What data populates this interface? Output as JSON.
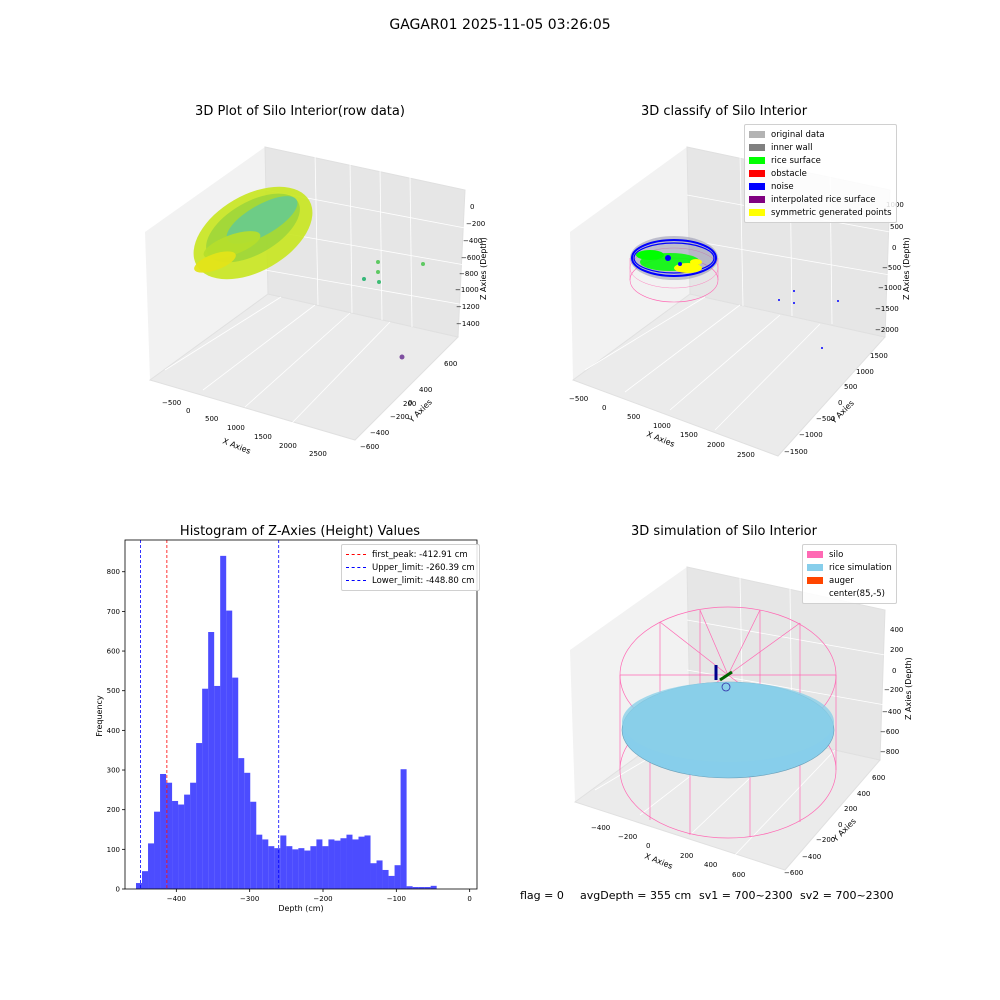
{
  "suptitle": "GAGAR01 2025-11-05 03:26:05",
  "panels": {
    "raw": {
      "title": "3D Plot of Silo Interior(row data)",
      "xlabel": "X Axies",
      "ylabel": "Y Axies",
      "zlabel": "Z Axies (Depth)",
      "x_ticks": [
        "−500",
        "0",
        "500",
        "1000",
        "1500",
        "2000",
        "2500"
      ],
      "y_ticks": [
        "600",
        "400",
        "200",
        "0",
        "−200",
        "−400",
        "−600"
      ],
      "z_ticks": [
        "0",
        "−200",
        "−400",
        "−600",
        "−800",
        "−1000",
        "−1200",
        "−1400"
      ]
    },
    "classify": {
      "title": "3D classify of Silo Interior",
      "xlabel": "X Axies",
      "ylabel": "Y Axies",
      "zlabel": "Z Axies (Depth)",
      "x_ticks": [
        "−500",
        "0",
        "500",
        "1000",
        "1500",
        "2000",
        "2500"
      ],
      "y_ticks": [
        "1500",
        "1000",
        "500",
        "0",
        "−500",
        "−1000",
        "−1500"
      ],
      "z_ticks": [
        "1000",
        "500",
        "0",
        "−500",
        "−1000",
        "−1500",
        "−2000"
      ],
      "legend": [
        {
          "label": "original data",
          "color": "#b3b3b3"
        },
        {
          "label": "inner wall",
          "color": "#808080"
        },
        {
          "label": "rice surface",
          "color": "#00ff00"
        },
        {
          "label": "obstacle",
          "color": "#ff0000"
        },
        {
          "label": "noise",
          "color": "#0000ff"
        },
        {
          "label": "interpolated rice surface",
          "color": "#800080"
        },
        {
          "label": "symmetric generated points",
          "color": "#ffff00"
        }
      ]
    },
    "simulation": {
      "title": "3D simulation of Silo Interior",
      "xlabel": "X Axies",
      "ylabel": "Y Axies",
      "zlabel": "Z Axies (Depth)",
      "x_ticks": [
        "−400",
        "−200",
        "0",
        "200",
        "400",
        "600"
      ],
      "y_ticks": [
        "600",
        "400",
        "200",
        "0",
        "−200",
        "−400",
        "−600"
      ],
      "z_ticks": [
        "400",
        "200",
        "0",
        "−200",
        "−400",
        "−600",
        "−800"
      ],
      "legend": [
        {
          "label": "silo",
          "color": "#ff69b4"
        },
        {
          "label": "rice simulation",
          "color": "#87ceeb"
        },
        {
          "label": "auger",
          "color": "#ff4500"
        },
        {
          "label": "center(85,-5)",
          "color": ""
        }
      ]
    }
  },
  "chart_data": {
    "type": "bar",
    "title": "Histogram of Z-Axies (Height) Values",
    "xlabel": "Depth (cm)",
    "ylabel": "Frequency",
    "xlim": [
      -470,
      10
    ],
    "ylim": [
      0,
      880
    ],
    "x_ticks": [
      -400,
      -300,
      -200,
      -100,
      0
    ],
    "x_tick_labels": [
      "−400",
      "−300",
      "−200",
      "−100",
      "0"
    ],
    "y_ticks": [
      0,
      100,
      200,
      300,
      400,
      500,
      600,
      700,
      800
    ],
    "bar_color": "#0000ff",
    "bar_alpha": 0.7,
    "bin_start": -455,
    "bin_width": 8.2,
    "values": [
      15,
      45,
      115,
      195,
      290,
      268,
      222,
      213,
      238,
      268,
      368,
      505,
      648,
      512,
      840,
      702,
      533,
      330,
      293,
      220,
      137,
      125,
      108,
      103,
      135,
      108,
      100,
      103,
      97,
      108,
      125,
      108,
      125,
      122,
      128,
      137,
      125,
      132,
      135,
      65,
      72,
      48,
      33,
      60,
      302,
      7,
      5,
      5,
      5,
      8
    ],
    "vlines": [
      {
        "name": "first_peak: -412.91 cm",
        "x": -412.91,
        "color": "#ff0000"
      },
      {
        "name": "Upper_limit: -260.39 cm",
        "x": -260.39,
        "color": "#0000ff"
      },
      {
        "name": "Lower_limit: -448.80 cm",
        "x": -448.8,
        "color": "#0000ff"
      }
    ]
  },
  "footer": {
    "flag": "flag = 0",
    "avg": "avgDepth = 355 cm",
    "sv1": "sv1 = 700~2300",
    "sv2": "sv2 = 700~2300"
  }
}
